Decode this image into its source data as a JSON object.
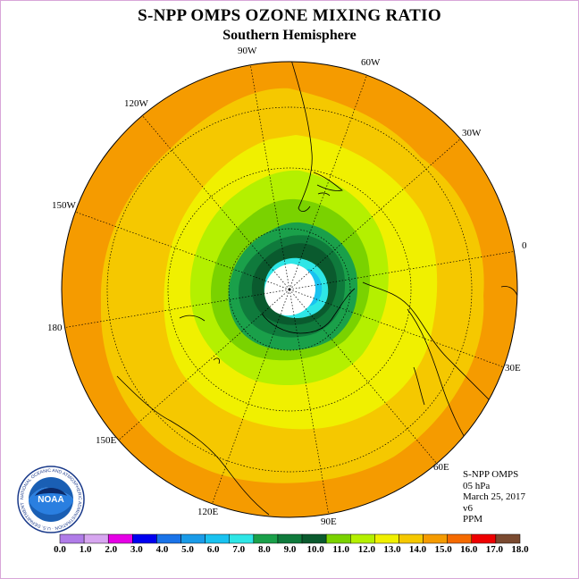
{
  "title": "S-NPP OMPS OZONE MIXING RATIO",
  "subtitle": "Southern Hemisphere",
  "longitude_labels": [
    "90W",
    "60W",
    "30W",
    "0",
    "30E",
    "60E",
    "90E",
    "120E",
    "150E",
    "180",
    "150W",
    "120W"
  ],
  "info": {
    "instrument": "S-NPP OMPS",
    "level": "05 hPa",
    "date": "March 25, 2017",
    "version": "v6",
    "units": "PPM"
  },
  "colorbar": {
    "ticks": [
      "0.0",
      "1.0",
      "2.0",
      "3.0",
      "4.0",
      "5.0",
      "6.0",
      "7.0",
      "8.0",
      "9.0",
      "10.0",
      "11.0",
      "12.0",
      "13.0",
      "14.0",
      "15.0",
      "16.0",
      "17.0",
      "18.0"
    ],
    "colors": [
      "#b07ce8",
      "#d7a6f0",
      "#e600e6",
      "#0000f0",
      "#1a73e8",
      "#1a9be8",
      "#19c2f0",
      "#2ee6e6",
      "#1aa04a",
      "#0f7a3c",
      "#0a5a2e",
      "#7ad200",
      "#b4f000",
      "#f0f000",
      "#f5c800",
      "#f59b00",
      "#f56a00",
      "#ee0000",
      "#7a4a30"
    ]
  },
  "logo_text": "NOAA",
  "logo_ring_text": "NATIONAL OCEANIC AND ATMOSPHERIC ADMINISTRATION · U.S. DEPARTMENT OF COMMERCE"
}
